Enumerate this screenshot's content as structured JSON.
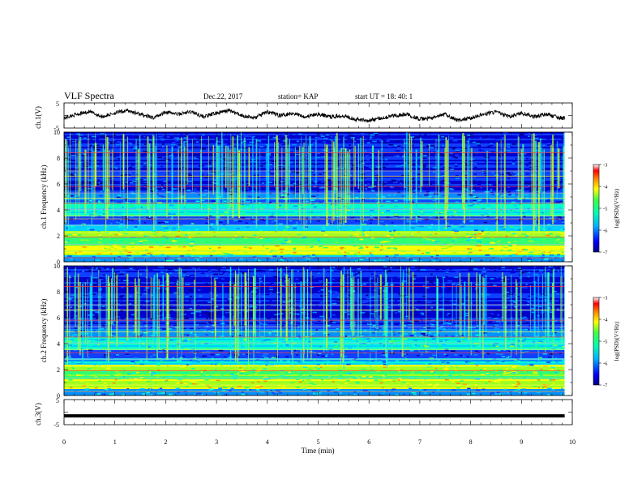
{
  "header": {
    "title": "VLF Spectra",
    "date": "Dec.22, 2017",
    "station": "station= KAP",
    "start": "start UT =  18: 40: 1"
  },
  "chart_data": [
    {
      "type": "line",
      "panel": "ch1-waveform",
      "ylabel": "ch.1(V)",
      "ylim": [
        -5,
        5
      ],
      "yticks": [
        "5",
        "-5"
      ],
      "xlim": [
        0,
        10
      ],
      "series": [
        {
          "x": [
            0,
            0.25,
            0.5,
            0.75,
            1,
            1.25,
            1.5,
            1.75,
            2,
            2.25,
            2.5,
            2.75,
            3,
            3.25,
            3.5,
            3.75,
            4,
            4.25,
            4.5,
            4.75,
            5,
            5.25,
            5.5,
            5.75,
            6,
            6.25,
            6.5,
            6.75,
            7,
            7.25,
            7.5,
            7.75,
            8,
            8.25,
            8.5,
            8.75,
            9,
            9.25,
            9.5,
            9.75
          ],
          "y": [
            -1,
            0.5,
            1.5,
            -0.5,
            1,
            2,
            0.5,
            -1,
            1.5,
            0.5,
            1.5,
            -0.5,
            1,
            2,
            0,
            -1,
            1.5,
            0,
            1,
            -0.5,
            0.5,
            -0.5,
            0,
            -1.5,
            -2,
            -1,
            0,
            0.5,
            -1.5,
            -1,
            0.5,
            -2,
            -1,
            0.5,
            1.5,
            -0.5,
            1,
            -0.5,
            0.5,
            -1
          ]
        }
      ]
    },
    {
      "type": "heatmap",
      "panel": "ch1-spectrogram",
      "ylabel": "ch.1 Frequency (kHz)",
      "ylim": [
        0,
        10
      ],
      "yticks": [
        "0",
        "2",
        "4",
        "6",
        "8",
        "10"
      ],
      "xlim": [
        0,
        10
      ],
      "data_end_min": 9.85,
      "colorbar": {
        "label": "log(PSD)(V²/Hz)",
        "ticks": [
          "-3",
          "-4",
          "-5",
          "-6",
          "-7"
        ],
        "range": [
          -7,
          -3
        ]
      }
    },
    {
      "type": "heatmap",
      "panel": "ch2-spectrogram",
      "ylabel": "ch.2 Frequency (kHz)",
      "ylim": [
        0,
        10
      ],
      "yticks": [
        "0",
        "2",
        "4",
        "6",
        "8",
        "10"
      ],
      "xlim": [
        0,
        10
      ],
      "data_end_min": 9.85,
      "colorbar": {
        "label": "log(PSD)(V²/Hz)",
        "ticks": [
          "-3",
          "-4",
          "-5",
          "-6",
          "-7"
        ],
        "range": [
          -7,
          -3
        ]
      }
    },
    {
      "type": "line",
      "panel": "ch3-waveform",
      "ylabel": "ch.3(V)",
      "ylim": [
        -5,
        5
      ],
      "yticks": [
        "5",
        "-5"
      ],
      "xlim": [
        0,
        10
      ],
      "series": [
        {
          "x": [
            0,
            9.85
          ],
          "y": [
            -1.5,
            -1.5
          ]
        }
      ]
    }
  ],
  "xaxis": {
    "label": "Time (min)",
    "ticks": [
      "0",
      "1",
      "2",
      "3",
      "4",
      "5",
      "6",
      "7",
      "8",
      "9",
      "10"
    ]
  }
}
